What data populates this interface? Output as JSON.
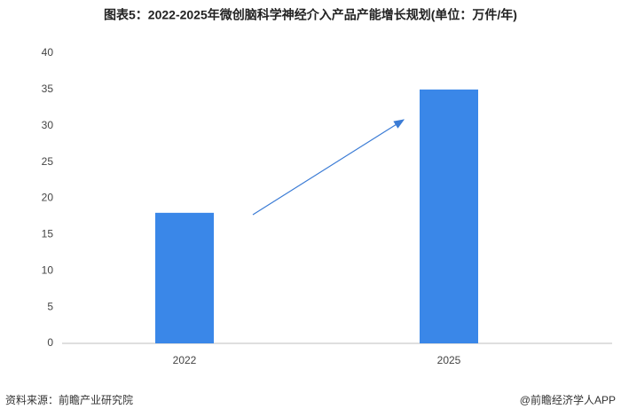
{
  "chart_data": {
    "type": "bar",
    "title": "图表5：2022-2025年微创脑科学神经介入产品产能增长规划(单位：万件/年)",
    "categories": [
      "2022",
      "2025"
    ],
    "values": [
      18,
      35
    ],
    "color": "#3a87e8",
    "ylim": [
      0,
      40
    ],
    "yticks": [
      0,
      5,
      10,
      15,
      20,
      25,
      30,
      35,
      40
    ],
    "grid": false,
    "source": "资料来源：前瞻产业研究院",
    "credit": "@前瞻经济学人APP"
  }
}
